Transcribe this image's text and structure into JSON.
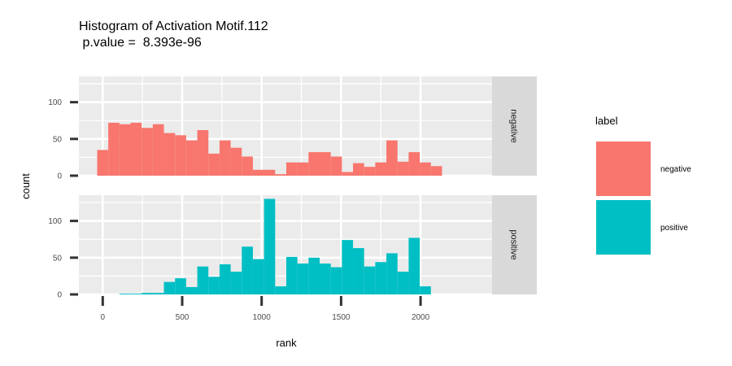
{
  "chart_data": {
    "type": "bar",
    "title": "Histogram of Activation Motif.112",
    "subtitle": " p.value =  8.393e-96",
    "xlabel": "rank",
    "ylabel": "count",
    "xlim": [
      -150,
      2450
    ],
    "ylim": [
      0,
      135
    ],
    "x_ticks": [
      0,
      500,
      1000,
      1500,
      2000
    ],
    "y_ticks": [
      0,
      50,
      100
    ],
    "binwidth": 70,
    "bin_centers": [
      0,
      70,
      140,
      210,
      280,
      350,
      420,
      490,
      560,
      630,
      700,
      770,
      840,
      910,
      980,
      1050,
      1120,
      1190,
      1260,
      1330,
      1400,
      1470,
      1540,
      1610,
      1680,
      1750,
      1820,
      1890,
      1960,
      2030,
      2100
    ],
    "series": [
      {
        "name": "negative",
        "color": "#F8766D",
        "values": [
          35,
          72,
          70,
          72,
          65,
          70,
          58,
          55,
          48,
          62,
          30,
          48,
          38,
          26,
          8,
          8,
          2,
          18,
          18,
          32,
          32,
          26,
          5,
          17,
          12,
          18,
          48,
          19,
          32,
          18,
          13
        ]
      },
      {
        "name": "positive",
        "color": "#00BFC4",
        "values": [
          0,
          0,
          1,
          1,
          2,
          2,
          17,
          22,
          10,
          38,
          24,
          41,
          31,
          65,
          48,
          130,
          11,
          51,
          42,
          50,
          42,
          37,
          74,
          63,
          38,
          44,
          56,
          31,
          77,
          11,
          0
        ]
      }
    ],
    "grid": true,
    "legend": {
      "title": "label",
      "position": "right",
      "entries": [
        "negative",
        "positive"
      ]
    },
    "facets": [
      "negative",
      "positive"
    ]
  }
}
